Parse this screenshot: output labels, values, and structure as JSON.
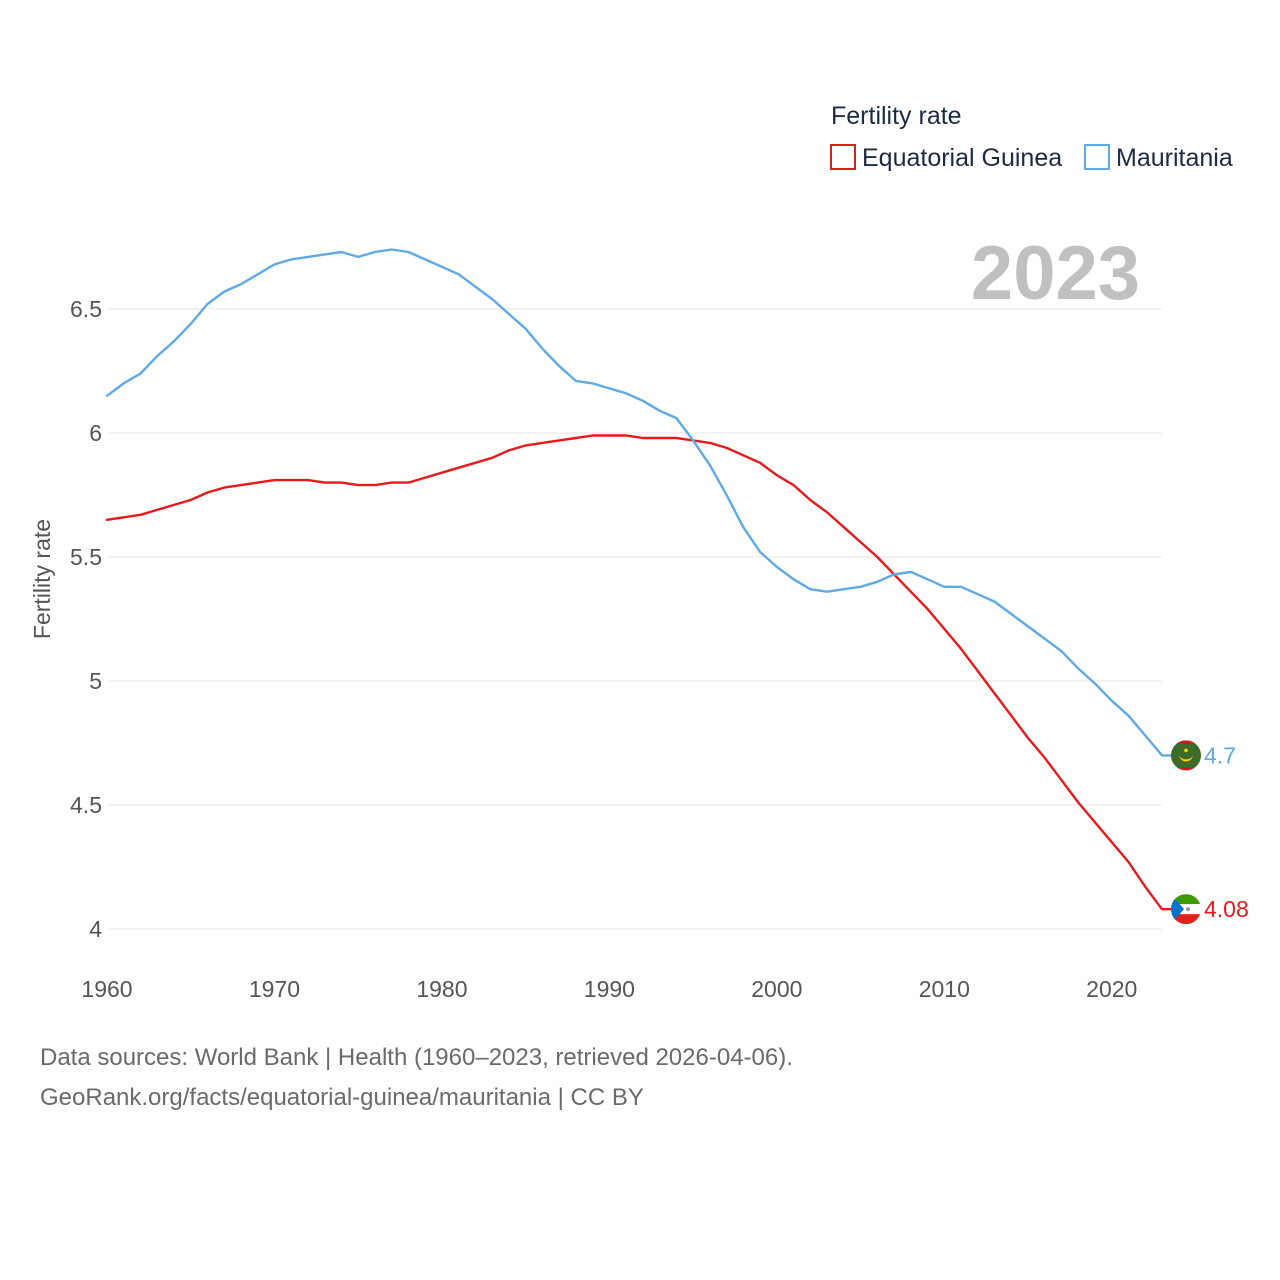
{
  "chart_data": {
    "type": "line",
    "title": "Fertility rate",
    "year_stamp": "2023",
    "xlabel": "",
    "ylabel": "Fertility rate",
    "xlim": [
      1960,
      2023
    ],
    "ylim": [
      4,
      6.75
    ],
    "x_ticks": [
      1960,
      1970,
      1980,
      1990,
      2000,
      2010,
      2020
    ],
    "y_ticks": [
      4,
      4.5,
      5,
      5.5,
      6,
      6.5
    ],
    "y_tick_labels": [
      "4",
      "4.5",
      "5",
      "5.5",
      "6",
      "6.5"
    ],
    "x": [
      1960,
      1961,
      1962,
      1963,
      1964,
      1965,
      1966,
      1967,
      1968,
      1969,
      1970,
      1971,
      1972,
      1973,
      1974,
      1975,
      1976,
      1977,
      1978,
      1979,
      1980,
      1981,
      1982,
      1983,
      1984,
      1985,
      1986,
      1987,
      1988,
      1989,
      1990,
      1991,
      1992,
      1993,
      1994,
      1995,
      1996,
      1997,
      1998,
      1999,
      2000,
      2001,
      2002,
      2003,
      2004,
      2005,
      2006,
      2007,
      2008,
      2009,
      2010,
      2011,
      2012,
      2013,
      2014,
      2015,
      2016,
      2017,
      2018,
      2019,
      2020,
      2021,
      2022,
      2023
    ],
    "series": [
      {
        "name": "Equatorial Guinea",
        "color": "#e8191b",
        "end_label": "4.08",
        "flag": "equatorial-guinea-flag-icon",
        "values": [
          5.65,
          5.66,
          5.67,
          5.69,
          5.71,
          5.73,
          5.76,
          5.78,
          5.79,
          5.8,
          5.81,
          5.81,
          5.81,
          5.8,
          5.8,
          5.79,
          5.79,
          5.8,
          5.8,
          5.82,
          5.84,
          5.86,
          5.88,
          5.9,
          5.93,
          5.95,
          5.96,
          5.97,
          5.98,
          5.99,
          5.99,
          5.99,
          5.98,
          5.98,
          5.98,
          5.97,
          5.96,
          5.94,
          5.91,
          5.88,
          5.83,
          5.79,
          5.73,
          5.68,
          5.62,
          5.56,
          5.5,
          5.43,
          5.36,
          5.29,
          5.21,
          5.13,
          5.04,
          4.95,
          4.86,
          4.77,
          4.69,
          4.6,
          4.51,
          4.43,
          4.35,
          4.27,
          4.17,
          4.08
        ]
      },
      {
        "name": "Mauritania",
        "color": "#5ea9e6",
        "end_label": "4.7",
        "flag": "mauritania-flag-icon",
        "values": [
          6.15,
          6.2,
          6.24,
          6.31,
          6.37,
          6.44,
          6.52,
          6.57,
          6.6,
          6.64,
          6.68,
          6.7,
          6.71,
          6.72,
          6.73,
          6.71,
          6.73,
          6.74,
          6.73,
          6.7,
          6.67,
          6.64,
          6.59,
          6.54,
          6.48,
          6.42,
          6.34,
          6.27,
          6.21,
          6.2,
          6.18,
          6.16,
          6.13,
          6.09,
          6.06,
          5.97,
          5.87,
          5.75,
          5.62,
          5.52,
          5.46,
          5.41,
          5.37,
          5.36,
          5.37,
          5.38,
          5.4,
          5.43,
          5.44,
          5.41,
          5.38,
          5.38,
          5.35,
          5.32,
          5.27,
          5.22,
          5.17,
          5.12,
          5.05,
          4.99,
          4.92,
          4.86,
          4.78,
          4.7
        ]
      }
    ],
    "legend_position": "top-right",
    "grid": true
  },
  "footer": {
    "source": "Data sources: World Bank | Health (1960–2023, retrieved 2026-04-06).",
    "credit": "GeoRank.org/facts/equatorial-guinea/mauritania | CC BY"
  }
}
